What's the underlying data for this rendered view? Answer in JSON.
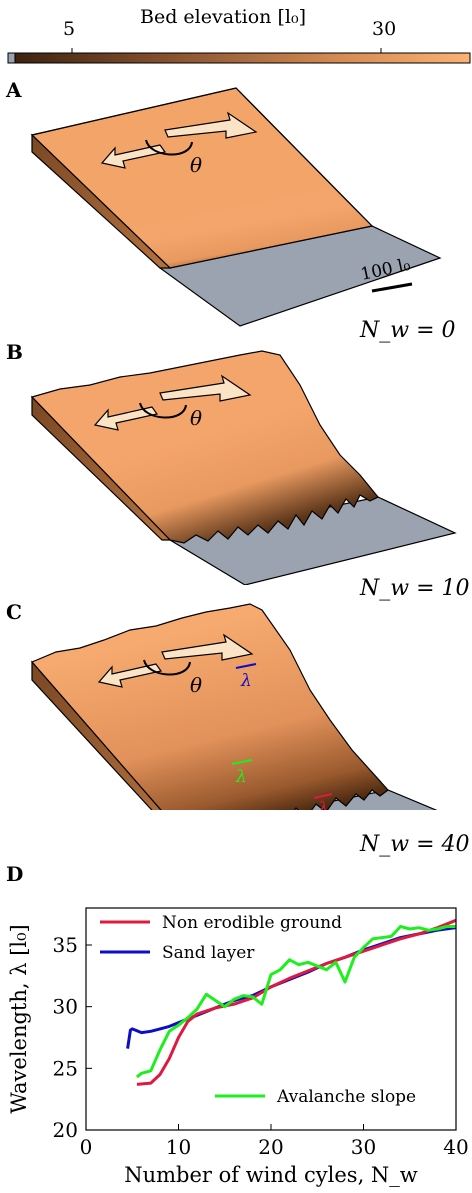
{
  "colorbar": {
    "title": "Bed elevation [l₀]",
    "ticks": [
      "5",
      "30"
    ]
  },
  "panels": [
    {
      "letter": "A",
      "nw": "N_w = 0",
      "scale_label": "100 l₀",
      "angle_label": "θ"
    },
    {
      "letter": "B",
      "nw": "N_w = 10",
      "angle_label": "θ"
    },
    {
      "letter": "C",
      "nw": "N_w = 40",
      "angle_label": "θ",
      "lambda_label": "λ"
    },
    {
      "letter": "D"
    }
  ],
  "colors": {
    "sand_light": "#f5a66b",
    "sand_dark": "#5a3418",
    "ground": "#9ba3b0",
    "arrow_fill": "#fbe3c6",
    "non_erodible": "#e0193f",
    "sand_layer": "#0d0dc8",
    "avalanche": "#1cf01c"
  },
  "chart_data": {
    "type": "line",
    "xlabel": "Number of wind cyles, N_w",
    "ylabel": "Wavelength, λ [l₀]",
    "xlim": [
      0,
      40
    ],
    "ylim": [
      20,
      38
    ],
    "xticks": [
      "0",
      "10",
      "20",
      "30",
      "40"
    ],
    "yticks": [
      "20",
      "25",
      "30",
      "35"
    ],
    "legend": [
      "Non erodible ground",
      "Sand layer",
      "Avalanche slope"
    ],
    "series": [
      {
        "name": "Non erodible ground",
        "x": [
          5.5,
          7,
          8,
          9,
          10,
          11,
          12,
          14,
          16,
          18,
          20,
          22,
          24,
          26,
          28,
          30,
          32,
          34,
          36,
          38,
          40
        ],
        "y": [
          23.7,
          23.8,
          24.5,
          25.8,
          27.5,
          28.8,
          29.4,
          29.9,
          30.2,
          30.7,
          31.6,
          32.3,
          32.9,
          33.5,
          34.0,
          34.5,
          35.0,
          35.5,
          35.9,
          36.4,
          37.0
        ]
      },
      {
        "name": "Sand layer",
        "x": [
          4.5,
          4.8,
          5,
          6,
          7,
          8,
          9,
          10,
          12,
          14,
          16,
          18,
          20,
          22,
          24,
          26,
          28,
          30,
          32,
          34,
          36,
          38,
          40
        ],
        "y": [
          26.6,
          28.1,
          28.2,
          27.9,
          28.0,
          28.2,
          28.4,
          28.7,
          29.3,
          29.9,
          30.5,
          30.9,
          31.6,
          32.2,
          32.8,
          33.5,
          34.0,
          34.6,
          35.1,
          35.6,
          35.9,
          36.2,
          36.4
        ]
      },
      {
        "name": "Avalanche slope",
        "x": [
          5.5,
          6,
          7,
          8,
          9,
          10,
          11,
          12,
          13,
          14,
          15,
          16,
          17,
          18,
          19,
          20,
          21,
          22,
          23,
          24,
          25,
          26,
          27,
          28,
          29,
          30,
          31,
          32,
          33,
          34,
          35,
          36,
          37,
          38,
          39,
          40
        ],
        "y": [
          24.3,
          24.6,
          24.8,
          26.5,
          28.0,
          28.5,
          29.1,
          29.8,
          31.0,
          30.5,
          30.0,
          30.6,
          30.9,
          30.8,
          30.2,
          32.6,
          33.0,
          33.8,
          33.4,
          33.6,
          33.3,
          33.0,
          33.6,
          32.0,
          34.0,
          34.8,
          35.5,
          35.6,
          35.7,
          36.5,
          36.3,
          36.4,
          36.2,
          36.3,
          36.5,
          36.5
        ]
      }
    ]
  }
}
